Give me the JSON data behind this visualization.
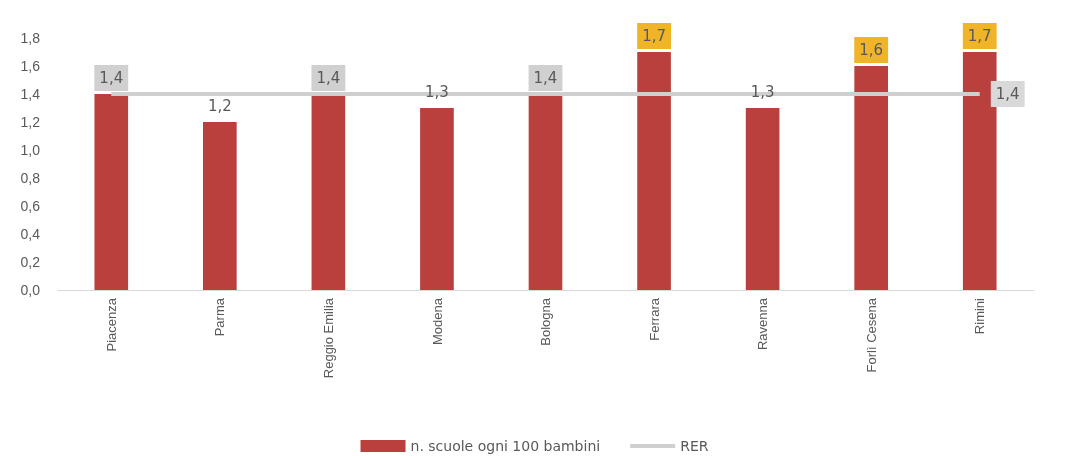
{
  "chart_data": {
    "type": "bar",
    "categories": [
      "Piacenza",
      "Parma",
      "Reggio Emilia",
      "Modena",
      "Bologna",
      "Ferrara",
      "Ravenna",
      "Forlì Cesena",
      "Rimini"
    ],
    "series": [
      {
        "name": "n. scuole ogni 100 bambini",
        "color": "#b9403d",
        "values": [
          1.4,
          1.2,
          1.4,
          1.3,
          1.4,
          1.7,
          1.3,
          1.6,
          1.7
        ],
        "value_labels": [
          "1,4",
          "1,2",
          "1,4",
          "1,3",
          "1,4",
          "1,7",
          "1,3",
          "1,6",
          "1,7"
        ]
      },
      {
        "name": "RER",
        "type": "line",
        "color": "#cfcfcf",
        "values": [
          1.4,
          1.4,
          1.4,
          1.4,
          1.4,
          1.4,
          1.4,
          1.4,
          1.4
        ],
        "value_labels": [
          null,
          null,
          null,
          null,
          null,
          null,
          null,
          null,
          "1,4"
        ]
      }
    ],
    "ylim": [
      0,
      1.8
    ],
    "yticks": [
      {
        "value": 0,
        "label": "0,0"
      },
      {
        "value": 0.2,
        "label": "0,2"
      },
      {
        "value": 0.4,
        "label": "0,4"
      },
      {
        "value": 0.6,
        "label": "0,6"
      },
      {
        "value": 0.8,
        "label": "0,8"
      },
      {
        "value": 1.0,
        "label": "1,0"
      },
      {
        "value": 1.2,
        "label": "1,2"
      },
      {
        "value": 1.4,
        "label": "1,4"
      },
      {
        "value": 1.6,
        "label": "1,6"
      },
      {
        "value": 1.8,
        "label": "1,8"
      }
    ],
    "legend": "bottom",
    "grid": false
  }
}
